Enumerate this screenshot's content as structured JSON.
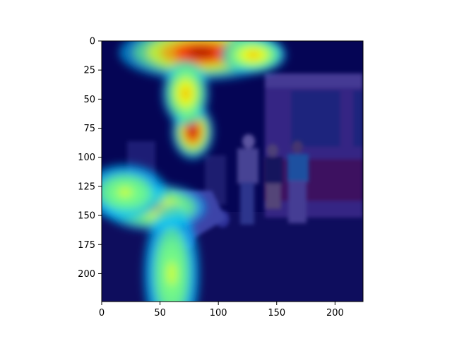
{
  "chart_data": {
    "type": "heatmap",
    "title": "",
    "xlabel": "",
    "ylabel": "",
    "xlim": [
      0,
      224
    ],
    "ylim": [
      224,
      0
    ],
    "x_ticks": [
      0,
      50,
      100,
      150,
      200
    ],
    "y_ticks": [
      0,
      25,
      50,
      75,
      100,
      125,
      150,
      175,
      200
    ],
    "colormap": "jet",
    "colormap_stops": [
      "#00007f",
      "#0000ff",
      "#00bfff",
      "#7fff7f",
      "#ffff00",
      "#ff7f00",
      "#ff0000",
      "#7f0000"
    ],
    "overlay_alpha": 0.5,
    "background_photo": "night street scene: people standing beside a red-and-white tram, a small parked scooter on the left",
    "hotspots": [
      {
        "x": 85,
        "y": 10,
        "x_spread": 35,
        "y_spread": 12,
        "intensity": 1.0
      },
      {
        "x": 130,
        "y": 12,
        "x_spread": 14,
        "y_spread": 8,
        "intensity": 0.55
      },
      {
        "x": 78,
        "y": 78,
        "x_spread": 9,
        "y_spread": 12,
        "intensity": 0.95
      },
      {
        "x": 72,
        "y": 45,
        "x_spread": 10,
        "y_spread": 14,
        "intensity": 0.55
      },
      {
        "x": 45,
        "y": 143,
        "x_spread": 22,
        "y_spread": 10,
        "intensity": 0.6
      },
      {
        "x": 60,
        "y": 200,
        "x_spread": 12,
        "y_spread": 30,
        "intensity": 0.35
      },
      {
        "x": 20,
        "y": 130,
        "x_spread": 18,
        "y_spread": 12,
        "intensity": 0.3
      }
    ]
  }
}
